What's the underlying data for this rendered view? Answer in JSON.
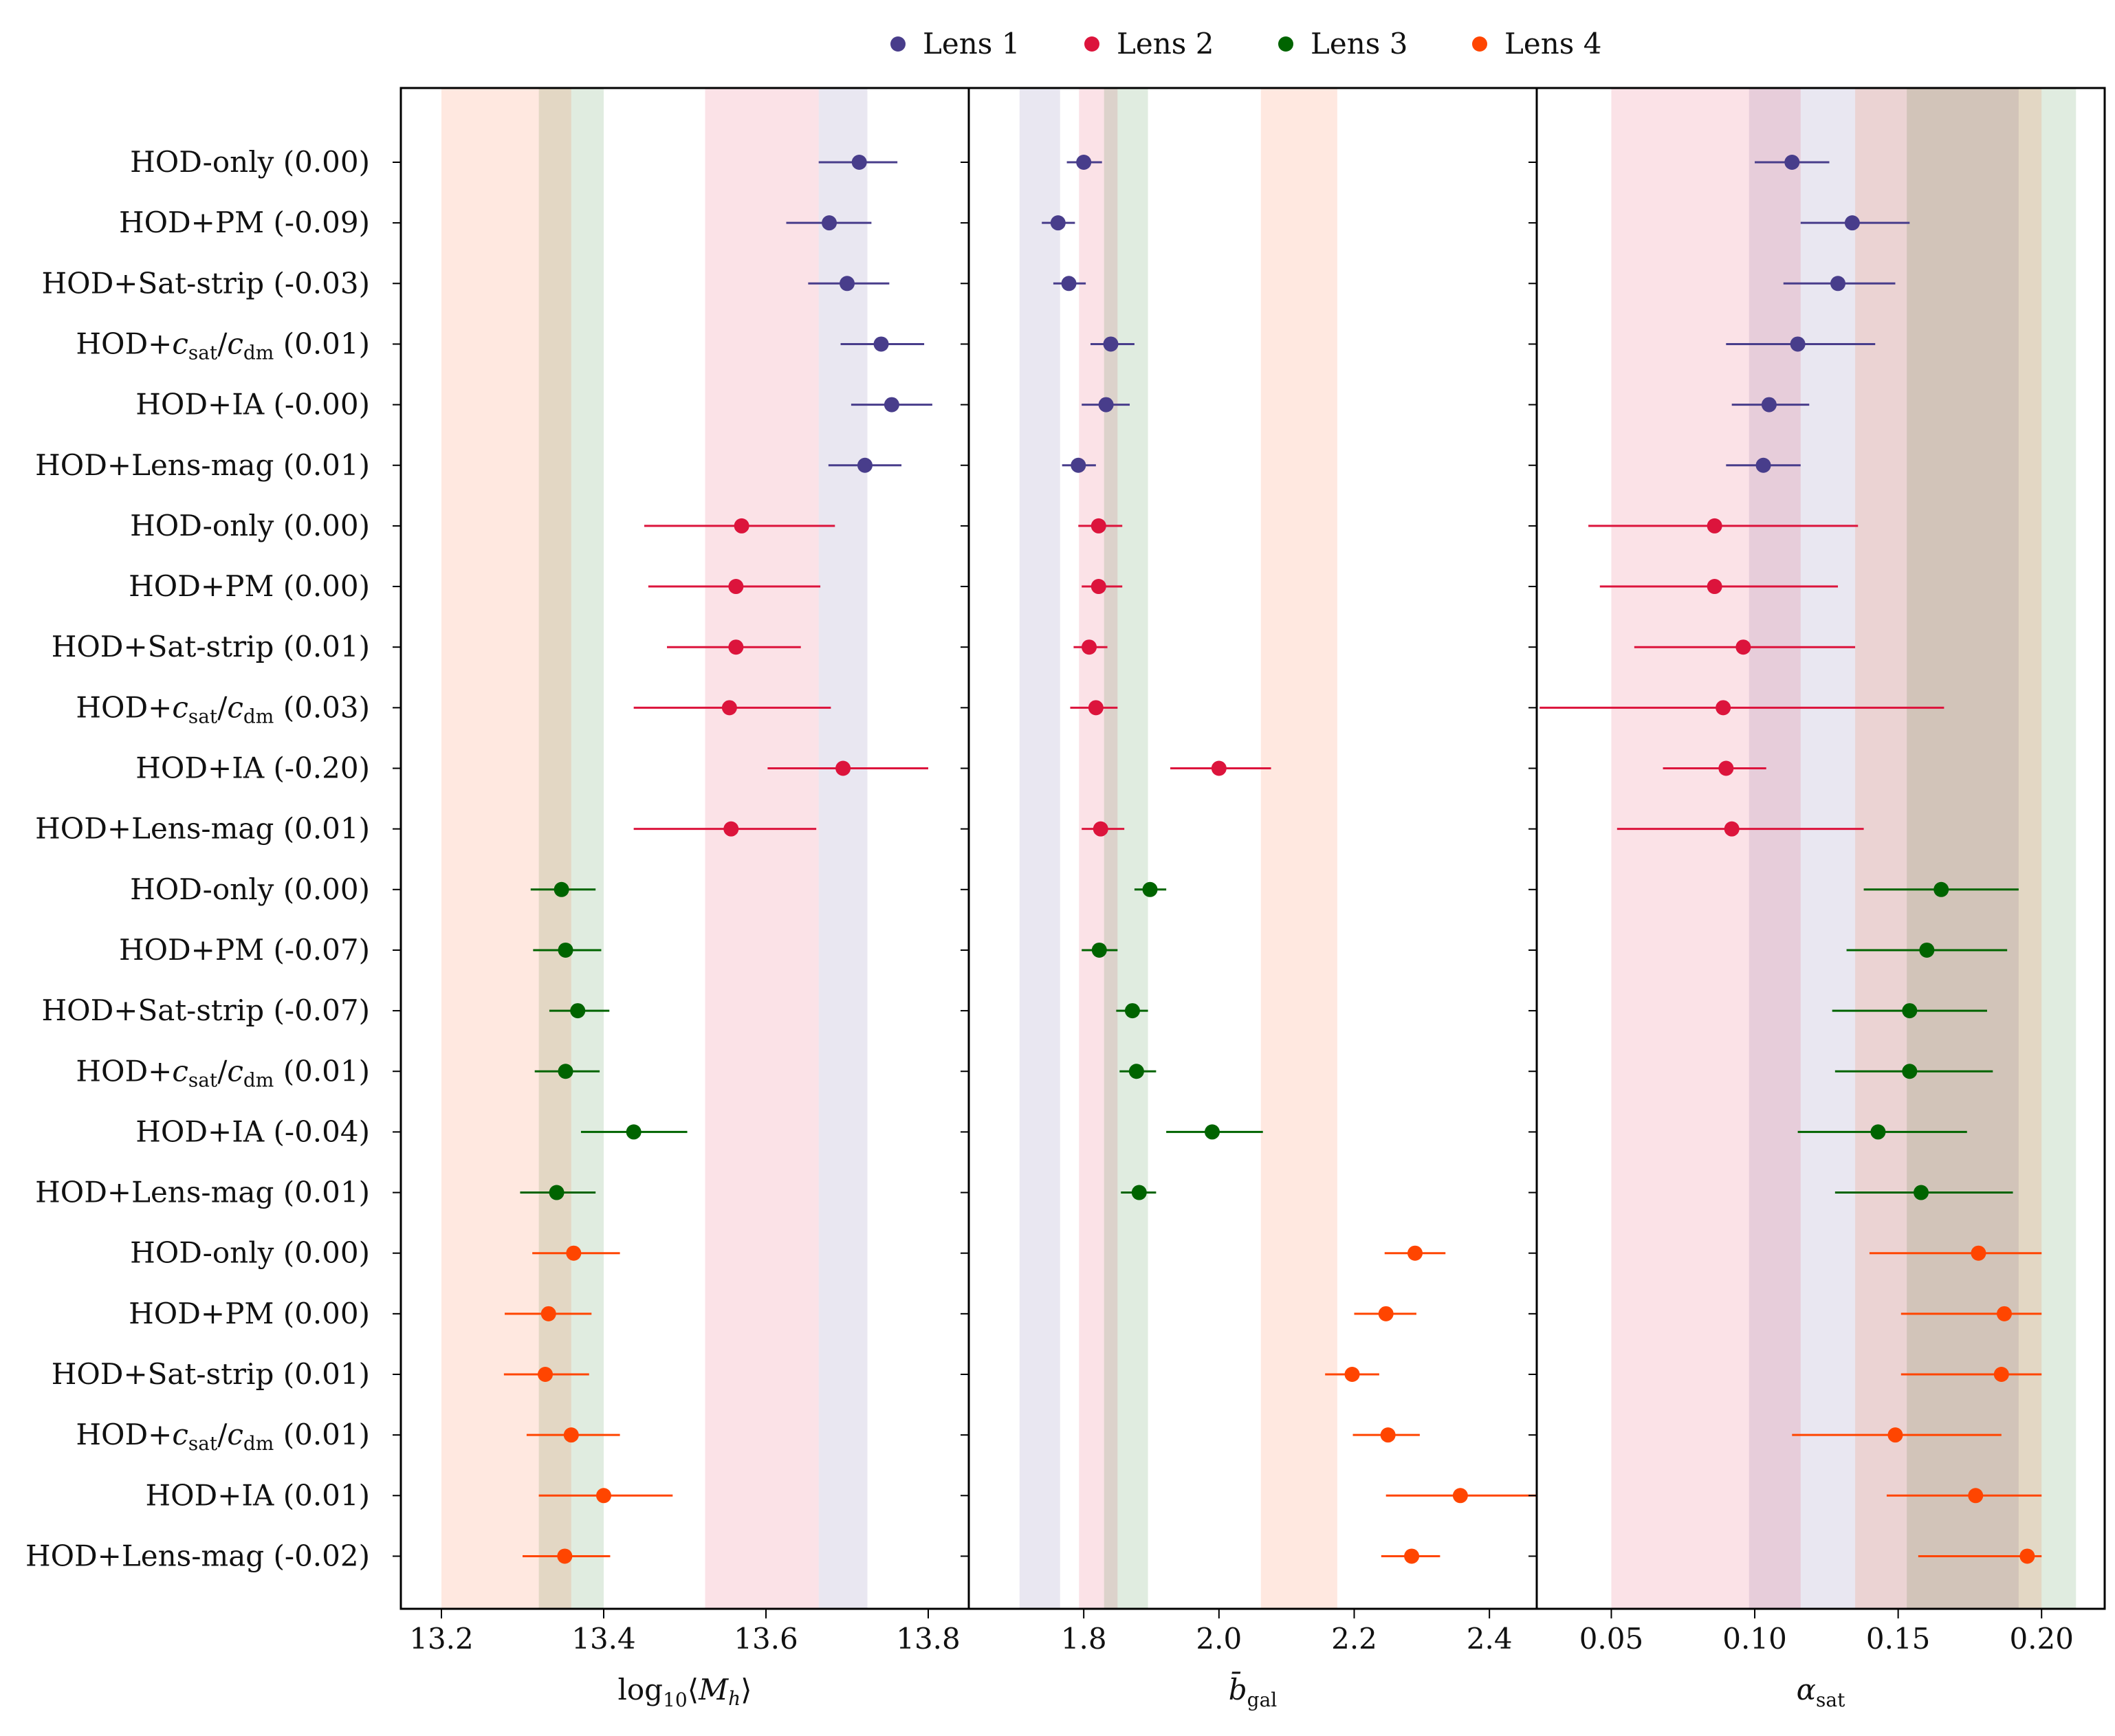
{
  "legend": [
    {
      "label": "Lens 1",
      "color": "#483D8B"
    },
    {
      "label": "Lens 2",
      "color": "#DC143C"
    },
    {
      "label": "Lens 3",
      "color": "#006400"
    },
    {
      "label": "Lens 4",
      "color": "#FF4500"
    }
  ],
  "chart_data": {
    "type": "scatter",
    "subtype": "forest plot with horizontal error bars, three panels sharing row labels",
    "rows": [
      {
        "base": "HOD-only",
        "tail": "",
        "shift": "(0.00)",
        "lens": 0
      },
      {
        "base": "HOD+PM",
        "tail": "",
        "shift": "(-0.09)",
        "lens": 0
      },
      {
        "base": "HOD+Sat-strip",
        "tail": "",
        "shift": "(-0.03)",
        "lens": 0
      },
      {
        "base": "HOD+",
        "tail": "csat/cdm",
        "shift": "(0.01)",
        "lens": 0
      },
      {
        "base": "HOD+IA",
        "tail": "",
        "shift": "(-0.00)",
        "lens": 0
      },
      {
        "base": "HOD+Lens-mag",
        "tail": "",
        "shift": "(0.01)",
        "lens": 0
      },
      {
        "base": "HOD-only",
        "tail": "",
        "shift": "(0.00)",
        "lens": 1
      },
      {
        "base": "HOD+PM",
        "tail": "",
        "shift": "(0.00)",
        "lens": 1
      },
      {
        "base": "HOD+Sat-strip",
        "tail": "",
        "shift": "(0.01)",
        "lens": 1
      },
      {
        "base": "HOD+",
        "tail": "csat/cdm",
        "shift": "(0.03)",
        "lens": 1
      },
      {
        "base": "HOD+IA",
        "tail": "",
        "shift": "(-0.20)",
        "lens": 1
      },
      {
        "base": "HOD+Lens-mag",
        "tail": "",
        "shift": "(0.01)",
        "lens": 1
      },
      {
        "base": "HOD-only",
        "tail": "",
        "shift": "(0.00)",
        "lens": 2
      },
      {
        "base": "HOD+PM",
        "tail": "",
        "shift": "(-0.07)",
        "lens": 2
      },
      {
        "base": "HOD+Sat-strip",
        "tail": "",
        "shift": "(-0.07)",
        "lens": 2
      },
      {
        "base": "HOD+",
        "tail": "csat/cdm",
        "shift": "(0.01)",
        "lens": 2
      },
      {
        "base": "HOD+IA",
        "tail": "",
        "shift": "(-0.04)",
        "lens": 2
      },
      {
        "base": "HOD+Lens-mag",
        "tail": "",
        "shift": "(0.01)",
        "lens": 2
      },
      {
        "base": "HOD-only",
        "tail": "",
        "shift": "(0.00)",
        "lens": 3
      },
      {
        "base": "HOD+PM",
        "tail": "",
        "shift": "(0.00)",
        "lens": 3
      },
      {
        "base": "HOD+Sat-strip",
        "tail": "",
        "shift": "(0.01)",
        "lens": 3
      },
      {
        "base": "HOD+",
        "tail": "csat/cdm",
        "shift": "(0.01)",
        "lens": 3
      },
      {
        "base": "HOD+IA",
        "tail": "",
        "shift": "(0.01)",
        "lens": 3
      },
      {
        "base": "HOD+Lens-mag",
        "tail": "",
        "shift": "(-0.02)",
        "lens": 3
      }
    ],
    "panels": [
      {
        "xlabel": "log10⟨Mh⟩",
        "xlim": [
          13.15,
          13.85
        ],
        "ticks": [
          13.2,
          13.4,
          13.6,
          13.8
        ],
        "tick_labels": [
          "13.2",
          "13.4",
          "13.6",
          "13.8"
        ],
        "bands": [
          [
            13.665,
            13.725
          ],
          [
            13.525,
            13.665
          ],
          [
            13.32,
            13.4
          ],
          [
            13.2,
            13.36
          ]
        ],
        "points": [
          [
            13.715,
            13.665,
            13.762
          ],
          [
            13.678,
            13.625,
            13.73
          ],
          [
            13.7,
            13.652,
            13.752
          ],
          [
            13.742,
            13.692,
            13.795
          ],
          [
            13.755,
            13.705,
            13.805
          ],
          [
            13.722,
            13.677,
            13.767
          ],
          [
            13.57,
            13.45,
            13.685
          ],
          [
            13.563,
            13.455,
            13.667
          ],
          [
            13.563,
            13.478,
            13.643
          ],
          [
            13.555,
            13.437,
            13.68
          ],
          [
            13.695,
            13.602,
            13.8
          ],
          [
            13.557,
            13.437,
            13.662
          ],
          [
            13.348,
            13.31,
            13.39
          ],
          [
            13.353,
            13.313,
            13.397
          ],
          [
            13.368,
            13.333,
            13.407
          ],
          [
            13.353,
            13.315,
            13.395
          ],
          [
            13.437,
            13.372,
            13.503
          ],
          [
            13.342,
            13.297,
            13.39
          ],
          [
            13.363,
            13.312,
            13.42
          ],
          [
            13.332,
            13.278,
            13.385
          ],
          [
            13.328,
            13.277,
            13.382
          ],
          [
            13.36,
            13.305,
            13.42
          ],
          [
            13.4,
            13.32,
            13.485
          ],
          [
            13.352,
            13.3,
            13.408
          ]
        ]
      },
      {
        "xlabel": "b̄gal",
        "xlim": [
          1.63,
          2.47
        ],
        "ticks": [
          1.8,
          2.0,
          2.2,
          2.4
        ],
        "tick_labels": [
          "1.8",
          "2.0",
          "2.2",
          "2.4"
        ],
        "bands": [
          [
            1.705,
            1.765
          ],
          [
            1.793,
            1.85
          ],
          [
            1.83,
            1.895
          ],
          [
            2.062,
            2.175
          ]
        ],
        "points": [
          [
            1.8,
            1.775,
            1.827
          ],
          [
            1.762,
            1.738,
            1.787
          ],
          [
            1.778,
            1.755,
            1.803
          ],
          [
            1.84,
            1.81,
            1.875
          ],
          [
            1.833,
            1.797,
            1.868
          ],
          [
            1.792,
            1.768,
            1.818
          ],
          [
            1.822,
            1.792,
            1.857
          ],
          [
            1.822,
            1.797,
            1.857
          ],
          [
            1.808,
            1.785,
            1.835
          ],
          [
            1.818,
            1.78,
            1.85
          ],
          [
            2.0,
            1.928,
            2.077
          ],
          [
            1.825,
            1.797,
            1.86
          ],
          [
            1.898,
            1.875,
            1.922
          ],
          [
            1.823,
            1.797,
            1.85
          ],
          [
            1.872,
            1.848,
            1.895
          ],
          [
            1.878,
            1.853,
            1.907
          ],
          [
            1.99,
            1.922,
            2.065
          ],
          [
            1.882,
            1.855,
            1.907
          ],
          [
            2.29,
            2.245,
            2.335
          ],
          [
            2.247,
            2.2,
            2.292
          ],
          [
            2.197,
            2.157,
            2.237
          ],
          [
            2.25,
            2.198,
            2.297
          ],
          [
            2.357,
            2.247,
            2.47
          ],
          [
            2.285,
            2.24,
            2.327
          ]
        ]
      },
      {
        "xlabel": "αsat",
        "xlim": [
          0.024,
          0.222
        ],
        "ticks": [
          0.05,
          0.1,
          0.15,
          0.2
        ],
        "tick_labels": [
          "0.05",
          "0.10",
          "0.15",
          "0.20"
        ],
        "bands": [
          [
            0.098,
            0.192
          ],
          [
            0.05,
            0.116
          ],
          [
            0.153,
            0.212
          ],
          [
            0.135,
            0.2
          ]
        ],
        "points": [
          [
            0.113,
            0.1,
            0.126
          ],
          [
            0.134,
            0.116,
            0.154
          ],
          [
            0.129,
            0.11,
            0.149
          ],
          [
            0.115,
            0.09,
            0.142
          ],
          [
            0.105,
            0.092,
            0.119
          ],
          [
            0.103,
            0.09,
            0.116
          ],
          [
            0.086,
            0.042,
            0.136
          ],
          [
            0.086,
            0.046,
            0.129
          ],
          [
            0.096,
            0.058,
            0.135
          ],
          [
            0.089,
            0.025,
            0.166
          ],
          [
            0.09,
            0.068,
            0.104
          ],
          [
            0.092,
            0.052,
            0.138
          ],
          [
            0.165,
            0.138,
            0.192
          ],
          [
            0.16,
            0.132,
            0.188
          ],
          [
            0.154,
            0.127,
            0.181
          ],
          [
            0.154,
            0.128,
            0.183
          ],
          [
            0.143,
            0.115,
            0.174
          ],
          [
            0.158,
            0.128,
            0.19
          ],
          [
            0.178,
            0.14,
            0.2
          ],
          [
            0.187,
            0.151,
            0.2
          ],
          [
            0.186,
            0.151,
            0.2
          ],
          [
            0.149,
            0.113,
            0.186
          ],
          [
            0.177,
            0.146,
            0.2
          ],
          [
            0.195,
            0.157,
            0.2
          ]
        ]
      }
    ]
  }
}
